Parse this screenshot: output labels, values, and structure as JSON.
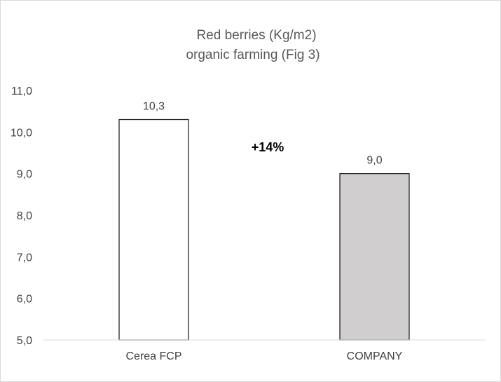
{
  "chart_data": {
    "type": "bar",
    "title_lines": [
      "Red berries (Kg/m2)",
      "organic farming (Fig 3)"
    ],
    "categories": [
      "Cerea FCP",
      "COMPANY"
    ],
    "values": [
      10.3,
      9.0
    ],
    "value_labels": [
      "10,3",
      "9,0"
    ],
    "bar_colors": [
      "#ffffff",
      "#d0cece"
    ],
    "bar_border_color": "#262626",
    "ylim": [
      5.0,
      11.0
    ],
    "y_ticks": [
      5.0,
      6.0,
      7.0,
      8.0,
      9.0,
      10.0,
      11.0
    ],
    "y_tick_labels": [
      "5,0",
      "6,0",
      "7,0",
      "8,0",
      "9,0",
      "10,0",
      "11,0"
    ],
    "xlabel": "",
    "ylabel": "",
    "grid": false,
    "legend": "none",
    "annotation": "+14%"
  }
}
